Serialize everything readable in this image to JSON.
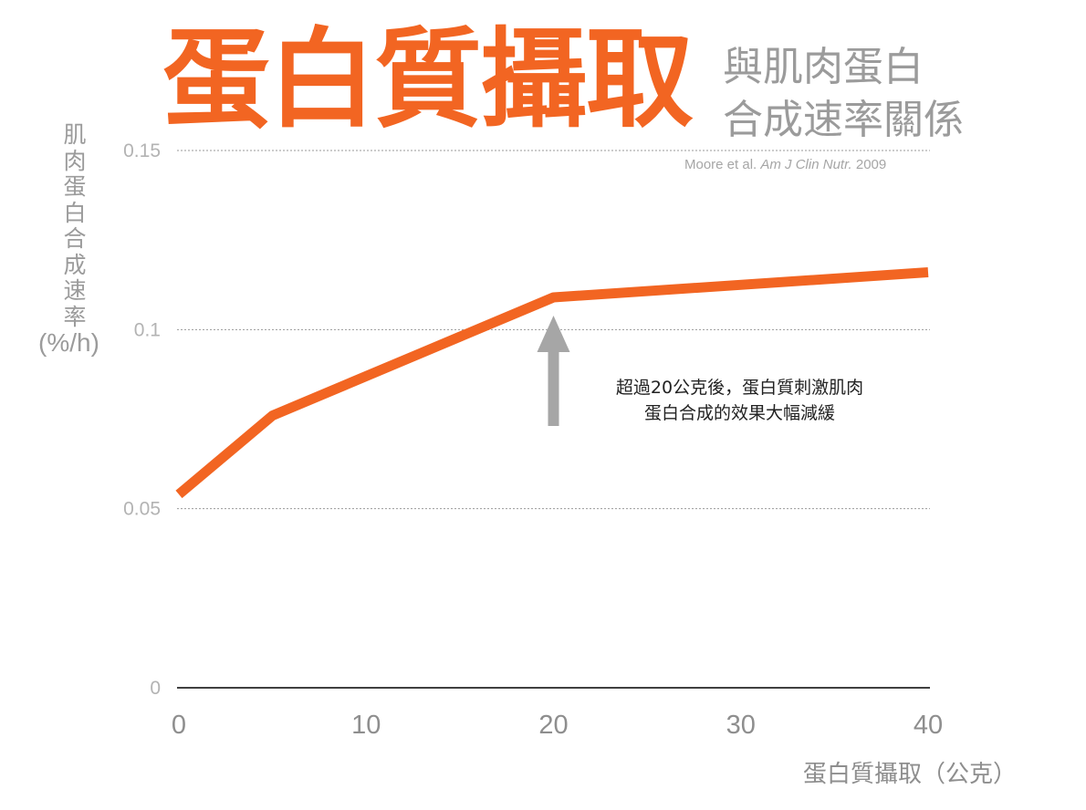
{
  "header": {
    "title": "蛋白質攝取",
    "subtitle_line1": "與肌肉蛋白",
    "subtitle_line2": "合成速率關係",
    "citation_authors": "Moore et al.",
    "citation_journal": "Am J Clin Nutr.",
    "citation_year": "2009"
  },
  "annotation": {
    "line1": "超過20公克後，蛋白質刺激肌肉",
    "line2": "蛋白合成的效果大幅減緩"
  },
  "colors": {
    "accent": "#f26522",
    "arrow": "#a6a6a6",
    "grid": "#9a9a9a",
    "axis": "#000000",
    "muted_text": "#9b9b9b"
  },
  "chart_data": {
    "type": "line",
    "title": "蛋白質攝取",
    "xlabel": "蛋白質攝取（公克）",
    "ylabel": "肌肉蛋白合成速率",
    "ylabel_unit": "(%/h)",
    "x": [
      0,
      5,
      20,
      40
    ],
    "series": [
      {
        "values": [
          0.054,
          0.076,
          0.109,
          0.116
        ]
      }
    ],
    "xlim": [
      0,
      40
    ],
    "ylim": [
      0,
      0.15
    ],
    "xticks": [
      0,
      10,
      20,
      30,
      40
    ],
    "xtick_labels": [
      "0",
      "10",
      "20",
      "30",
      "40"
    ],
    "yticks": [
      0,
      0.05,
      0.1,
      0.15
    ],
    "ytick_labels": [
      "0",
      "0.05",
      "0.1",
      "0.15"
    ],
    "grid": "horizontal dotted",
    "annotation_arrow_x": 20
  }
}
